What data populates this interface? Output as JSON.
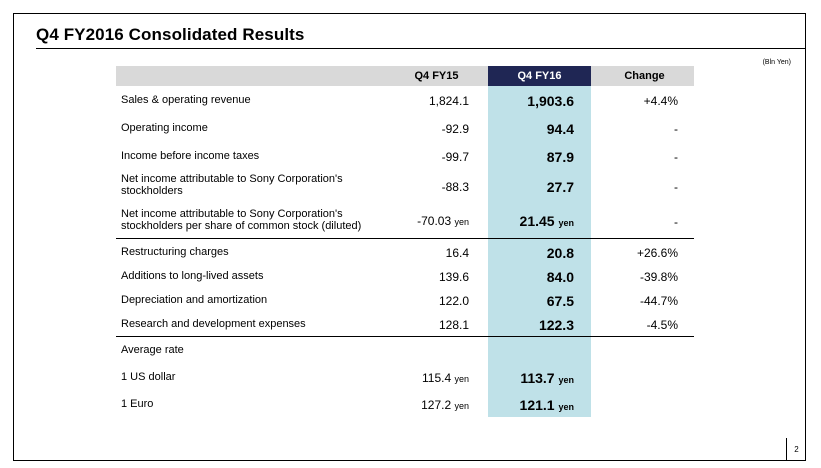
{
  "slide": {
    "title": "Q4 FY2016  Consolidated Results",
    "unit": "(Bln Yen)",
    "page_number": "2"
  },
  "table": {
    "columns": {
      "prev": "Q4 FY15",
      "current": "Q4 FY16",
      "change": "Change"
    },
    "rows": [
      {
        "label": "Sales & operating revenue",
        "prev": "1,824.1",
        "current": "1,903.6",
        "change": "+4.4%"
      },
      {
        "label": "Operating income",
        "prev": "-92.9",
        "current": "94.4",
        "change": "-"
      },
      {
        "label": "Income before income taxes",
        "prev": "-99.7",
        "current": "87.9",
        "change": "-"
      },
      {
        "label": "Net income attributable to Sony Corporation's stockholders",
        "prev": "-88.3",
        "current": "27.7",
        "change": "-"
      },
      {
        "label": "Net income attributable to Sony Corporation's stockholders per share of common stock (diluted)",
        "prev": "-70.03",
        "prev_unit": "yen",
        "current": "21.45",
        "current_unit": "yen",
        "change": "-"
      },
      {
        "label": "Restructuring charges",
        "prev": "16.4",
        "current": "20.8",
        "change": "+26.6%"
      },
      {
        "label": "Additions to long-lived assets",
        "prev": "139.6",
        "current": "84.0",
        "change": "-39.8%"
      },
      {
        "label": "Depreciation and amortization",
        "prev": "122.0",
        "current": "67.5",
        "change": "-44.7%"
      },
      {
        "label": "Research and development expenses",
        "prev": "128.1",
        "current": "122.3",
        "change": "-4.5%"
      }
    ],
    "average_rate": {
      "heading": "Average rate",
      "rows": [
        {
          "label": "1 US dollar",
          "prev": "115.4",
          "prev_unit": "yen",
          "current": "113.7",
          "current_unit": "yen"
        },
        {
          "label": "1 Euro",
          "prev": "127.2",
          "prev_unit": "yen",
          "current": "121.1",
          "current_unit": "yen"
        }
      ]
    }
  },
  "colors": {
    "header_bg": "#d9d9d9",
    "highlight_header": "#1f2654",
    "highlight_column": "#bfe1e8"
  }
}
